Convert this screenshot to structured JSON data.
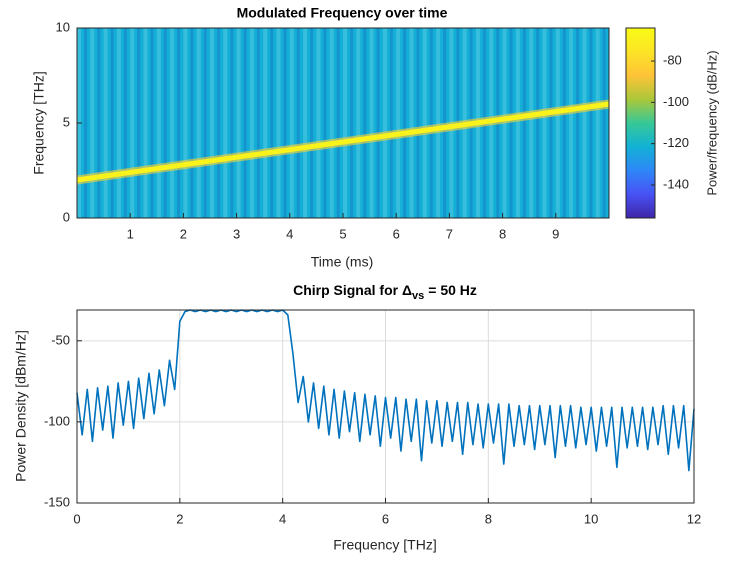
{
  "chart_data": [
    {
      "type": "heatmap",
      "title": "Modulated Frequency over time",
      "xlabel": "Time (ms)",
      "ylabel": "Frequency [THz]",
      "xlim": [
        0,
        10
      ],
      "xticks": [
        1,
        2,
        3,
        4,
        5,
        6,
        7,
        8,
        9
      ],
      "ylim": [
        0,
        10
      ],
      "yticks": [
        0,
        5,
        10
      ],
      "x": [
        0,
        10
      ],
      "values": [
        2,
        6
      ],
      "ridge_power": -68,
      "background_power": -122,
      "colorbar_label": "Power/frequency (dB/Hz)",
      "clim": [
        -156,
        -64
      ],
      "colorbar_ticks": [
        -80,
        -100,
        -120,
        -140
      ]
    },
    {
      "type": "line",
      "title_parts": [
        "Chirp Signal for Δ",
        "vs",
        "= 50 Hz"
      ],
      "xlabel": "Frequency [THz]",
      "ylabel": "Power Density [dBm/Hz]",
      "xlim": [
        0,
        12
      ],
      "xticks": [
        0,
        2,
        4,
        6,
        8,
        10,
        12
      ],
      "ylim": [
        -150,
        -31
      ],
      "yticks": [
        -50,
        -100,
        -150
      ],
      "grid": true,
      "color": "#0072bd",
      "x": [
        0,
        0.1,
        0.2,
        0.3,
        0.4,
        0.5,
        0.6,
        0.7,
        0.8,
        0.9,
        1,
        1.1,
        1.2,
        1.3,
        1.4,
        1.5,
        1.6,
        1.7,
        1.8,
        1.9,
        2,
        2.1,
        2.2,
        2.3,
        2.4,
        2.5,
        2.6,
        2.7,
        2.8,
        2.9,
        3,
        3.1,
        3.2,
        3.3,
        3.4,
        3.5,
        3.6,
        3.7,
        3.8,
        3.9,
        4,
        4.1,
        4.2,
        4.3,
        4.4,
        4.5,
        4.6,
        4.7,
        4.8,
        4.9,
        5,
        5.1,
        5.2,
        5.3,
        5.4,
        5.5,
        5.6,
        5.7,
        5.8,
        5.9,
        6,
        6.1,
        6.2,
        6.3,
        6.4,
        6.5,
        6.6,
        6.7,
        6.8,
        6.9,
        7,
        7.1,
        7.2,
        7.3,
        7.4,
        7.5,
        7.6,
        7.7,
        7.8,
        7.9,
        8,
        8.1,
        8.2,
        8.3,
        8.4,
        8.5,
        8.6,
        8.7,
        8.8,
        8.9,
        9,
        9.1,
        9.2,
        9.3,
        9.4,
        9.5,
        9.6,
        9.7,
        9.8,
        9.9,
        10,
        10.1,
        10.2,
        10.3,
        10.4,
        10.5,
        10.6,
        10.7,
        10.8,
        10.9,
        11,
        11.1,
        11.2,
        11.3,
        11.4,
        11.5,
        11.6,
        11.7,
        11.8,
        11.9,
        12
      ],
      "values": [
        -82,
        -108,
        -80,
        -112,
        -79,
        -105,
        -78,
        -110,
        -76,
        -102,
        -75,
        -104,
        -73,
        -98,
        -70,
        -95,
        -68,
        -90,
        -62,
        -80,
        -38,
        -32,
        -31,
        -32,
        -31,
        -32,
        -31,
        -32,
        -31,
        -32,
        -31,
        -32,
        -31,
        -32,
        -31,
        -32,
        -31,
        -32,
        -31,
        -32,
        -31,
        -34,
        -58,
        -88,
        -72,
        -100,
        -76,
        -104,
        -78,
        -108,
        -80,
        -110,
        -81,
        -106,
        -82,
        -112,
        -83,
        -108,
        -84,
        -115,
        -85,
        -110,
        -85,
        -118,
        -86,
        -112,
        -86,
        -124,
        -87,
        -113,
        -87,
        -115,
        -88,
        -112,
        -88,
        -120,
        -88,
        -114,
        -89,
        -116,
        -89,
        -113,
        -89,
        -126,
        -89,
        -115,
        -90,
        -114,
        -90,
        -117,
        -90,
        -114,
        -90,
        -122,
        -90,
        -115,
        -90,
        -116,
        -91,
        -114,
        -91,
        -118,
        -91,
        -115,
        -91,
        -128,
        -91,
        -116,
        -91,
        -115,
        -91,
        -117,
        -91,
        -114,
        -90,
        -120,
        -90,
        -116,
        -90,
        -130,
        -92
      ]
    }
  ]
}
